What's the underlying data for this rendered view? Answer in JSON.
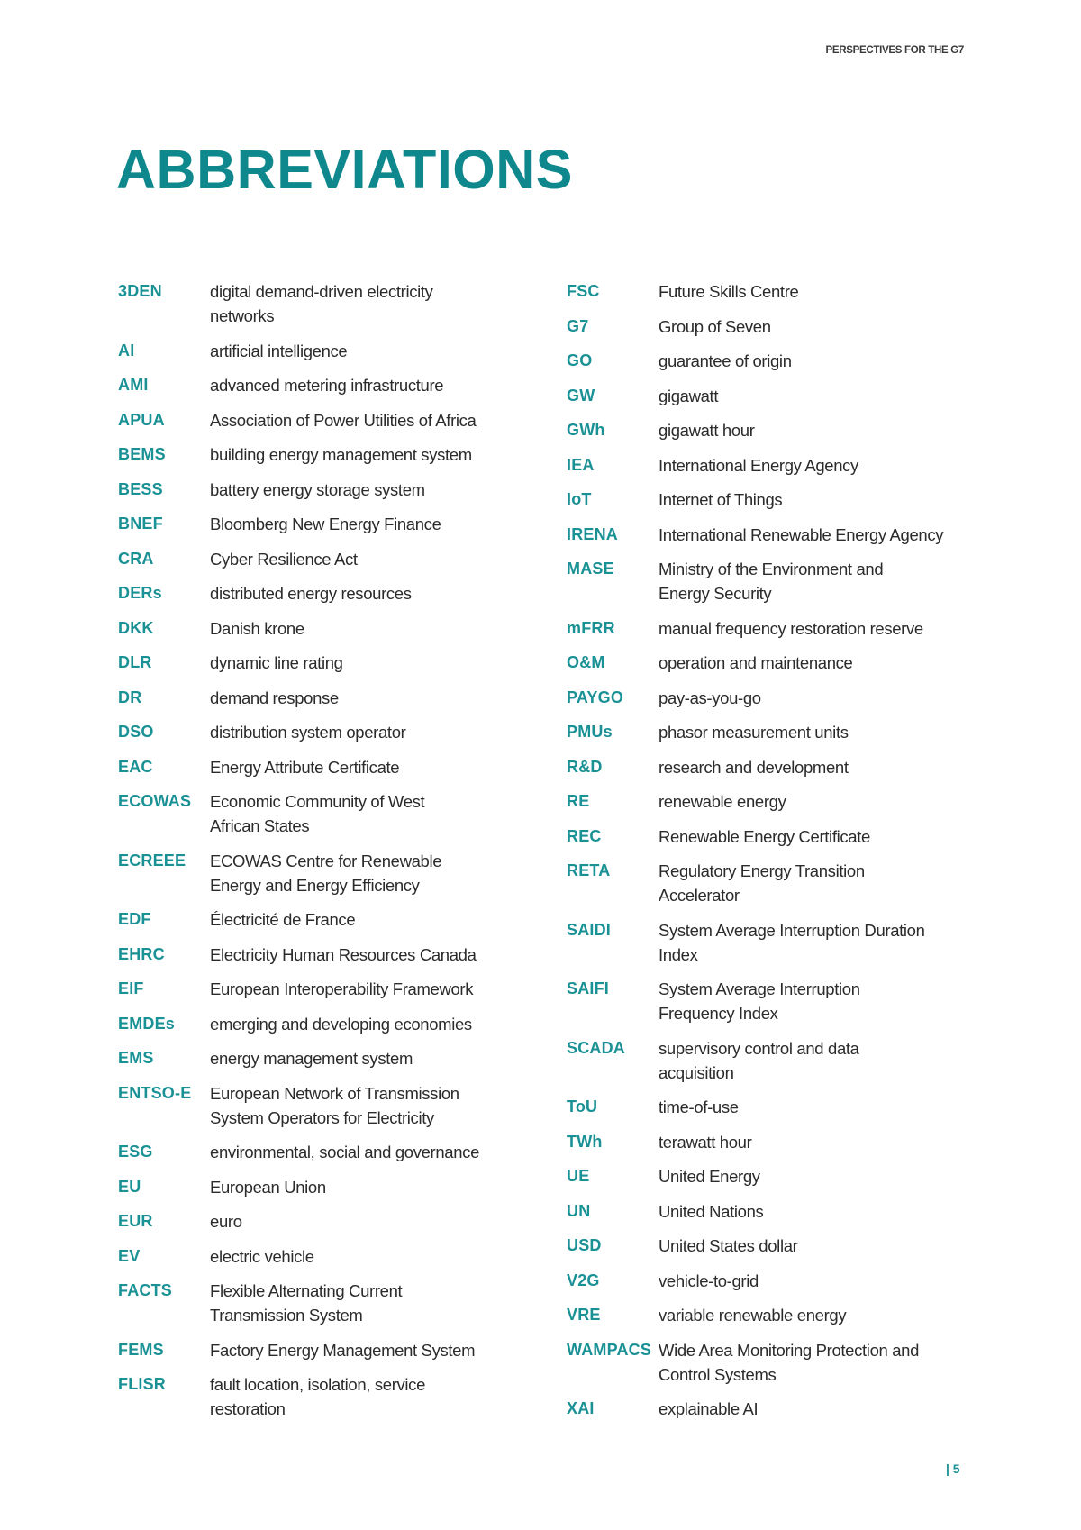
{
  "header": {
    "running_head": "PERSPECTIVES FOR THE G7"
  },
  "title": "ABBREVIATIONS",
  "accent_color": "#0e888c",
  "left_column": [
    {
      "abbr": "3DEN",
      "def": "digital demand-driven electricity\nnetworks"
    },
    {
      "abbr": "AI",
      "def": "artificial intelligence"
    },
    {
      "abbr": "AMI",
      "def": "advanced metering infrastructure"
    },
    {
      "abbr": "APUA",
      "def": "Association of Power Utilities of Africa"
    },
    {
      "abbr": "BEMS",
      "def": "building energy management system"
    },
    {
      "abbr": "BESS",
      "def": "battery energy storage system"
    },
    {
      "abbr": "BNEF",
      "def": "Bloomberg New Energy Finance"
    },
    {
      "abbr": "CRA",
      "def": "Cyber Resilience Act"
    },
    {
      "abbr": "DERs",
      "def": "distributed energy resources"
    },
    {
      "abbr": "DKK",
      "def": "Danish krone"
    },
    {
      "abbr": "DLR",
      "def": "dynamic line rating"
    },
    {
      "abbr": "DR",
      "def": "demand response"
    },
    {
      "abbr": "DSO",
      "def": "distribution system operator"
    },
    {
      "abbr": "EAC",
      "def": "Energy Attribute Certificate"
    },
    {
      "abbr": "ECOWAS",
      "def": "Economic Community of West\nAfrican States"
    },
    {
      "abbr": "ECREEE",
      "def": "ECOWAS Centre for Renewable\nEnergy and Energy Efficiency"
    },
    {
      "abbr": "EDF",
      "def": "Électricité de France"
    },
    {
      "abbr": "EHRC",
      "def": "Electricity Human Resources Canada"
    },
    {
      "abbr": "EIF",
      "def": "European Interoperability Framework"
    },
    {
      "abbr": "EMDEs",
      "def": "emerging and developing economies"
    },
    {
      "abbr": "EMS",
      "def": "energy management system"
    },
    {
      "abbr": "ENTSO-E",
      "def": "European Network of Transmission\nSystem Operators for Electricity"
    },
    {
      "abbr": "ESG",
      "def": "environmental, social and governance"
    },
    {
      "abbr": "EU",
      "def": "European Union"
    },
    {
      "abbr": "EUR",
      "def": "euro"
    },
    {
      "abbr": "EV",
      "def": "electric vehicle"
    },
    {
      "abbr": "FACTS",
      "def": "Flexible Alternating Current\nTransmission System"
    },
    {
      "abbr": "FEMS",
      "def": "Factory Energy Management System"
    },
    {
      "abbr": "FLISR",
      "def": "fault location, isolation, service\nrestoration"
    }
  ],
  "right_column": [
    {
      "abbr": "FSC",
      "def": "Future Skills Centre"
    },
    {
      "abbr": "G7",
      "def": "Group of Seven"
    },
    {
      "abbr": "GO",
      "def": "guarantee of origin"
    },
    {
      "abbr": "GW",
      "def": "gigawatt"
    },
    {
      "abbr": "GWh",
      "def": "gigawatt hour"
    },
    {
      "abbr": "IEA",
      "def": "International Energy Agency"
    },
    {
      "abbr": "IoT",
      "def": "Internet of Things"
    },
    {
      "abbr": "IRENA",
      "def": "International Renewable Energy Agency"
    },
    {
      "abbr": "MASE",
      "def": "Ministry of the Environment and\nEnergy Security"
    },
    {
      "abbr": "mFRR",
      "def": "manual frequency restoration reserve"
    },
    {
      "abbr": "O&M",
      "def": "operation and maintenance"
    },
    {
      "abbr": "PAYGO",
      "def": "pay-as-you-go"
    },
    {
      "abbr": "PMUs",
      "def": "phasor measurement units"
    },
    {
      "abbr": "R&D",
      "def": "research and development"
    },
    {
      "abbr": "RE",
      "def": "renewable energy"
    },
    {
      "abbr": "REC",
      "def": "Renewable Energy Certificate"
    },
    {
      "abbr": "RETA",
      "def": "Regulatory Energy Transition\nAccelerator"
    },
    {
      "abbr": "SAIDI",
      "def": "System Average Interruption Duration\nIndex"
    },
    {
      "abbr": "SAIFI",
      "def": "System Average Interruption\nFrequency Index"
    },
    {
      "abbr": "SCADA",
      "def": "supervisory control and data\nacquisition"
    },
    {
      "abbr": "ToU",
      "def": "time-of-use"
    },
    {
      "abbr": "TWh",
      "def": "terawatt hour"
    },
    {
      "abbr": "UE",
      "def": "United Energy"
    },
    {
      "abbr": "UN",
      "def": "United Nations"
    },
    {
      "abbr": "USD",
      "def": "United States dollar"
    },
    {
      "abbr": "V2G",
      "def": "vehicle-to-grid"
    },
    {
      "abbr": "VRE",
      "def": "variable renewable energy"
    },
    {
      "abbr": "WAMPACS",
      "def": "Wide Area Monitoring Protection and\nControl Systems"
    },
    {
      "abbr": "XAI",
      "def": "explainable AI"
    }
  ],
  "footer": {
    "page_number": "| 5"
  }
}
